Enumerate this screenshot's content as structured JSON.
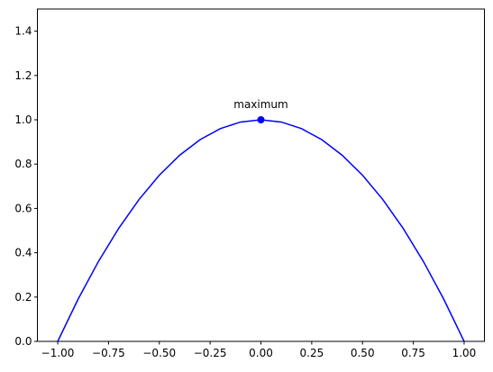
{
  "chart_data": {
    "type": "line",
    "x": [
      -1,
      -0.9,
      -0.8,
      -0.7,
      -0.6,
      -0.5,
      -0.4,
      -0.3,
      -0.2,
      -0.1,
      0,
      0.1,
      0.2,
      0.3,
      0.4,
      0.5,
      0.6,
      0.7,
      0.8,
      0.9,
      1
    ],
    "series": [
      {
        "color": "#0000ff",
        "values": [
          0,
          0.19,
          0.36,
          0.51,
          0.64,
          0.75,
          0.84,
          0.91,
          0.96,
          0.99,
          1,
          0.99,
          0.96,
          0.91,
          0.84,
          0.75,
          0.64,
          0.51,
          0.36,
          0.19,
          0
        ]
      }
    ],
    "annotations": [
      {
        "text": "maximum",
        "x": 0,
        "y": 1,
        "color": "#0000ff"
      }
    ],
    "xlim": [
      -1.1,
      1.1
    ],
    "ylim": [
      0,
      1.5
    ],
    "xticks": [
      {
        "value": -1,
        "label": "−1.00"
      },
      {
        "value": -0.75,
        "label": "−0.75"
      },
      {
        "value": -0.5,
        "label": "−0.50"
      },
      {
        "value": -0.25,
        "label": "−0.25"
      },
      {
        "value": 0,
        "label": "0.00"
      },
      {
        "value": 0.25,
        "label": "0.25"
      },
      {
        "value": 0.5,
        "label": "0.50"
      },
      {
        "value": 0.75,
        "label": "0.75"
      },
      {
        "value": 1,
        "label": "1.00"
      }
    ],
    "yticks": [
      {
        "value": 0,
        "label": "0.0"
      },
      {
        "value": 0.2,
        "label": "0.2"
      },
      {
        "value": 0.4,
        "label": "0.4"
      },
      {
        "value": 0.6,
        "label": "0.6"
      },
      {
        "value": 0.8,
        "label": "0.8"
      },
      {
        "value": 1,
        "label": "1.0"
      },
      {
        "value": 1.2,
        "label": "1.2"
      },
      {
        "value": 1.4,
        "label": "1.4"
      }
    ],
    "grid": false
  }
}
